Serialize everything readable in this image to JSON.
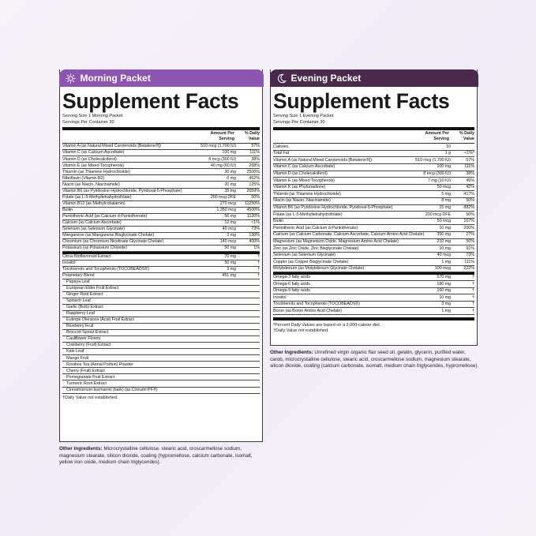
{
  "morning": {
    "header": "Morning Packet",
    "header_icon": "sun-icon",
    "title": "Supplement Facts",
    "serving_size": "Serving Size 1 Morning Packet",
    "servings": "Servings Per Container 30",
    "col_amount": "Amount Per Serving",
    "col_dv": "% Daily Value",
    "rows": [
      {
        "name": "Vitamin A (as Natural Mixed Carotenoids [Betatene®])",
        "amount": "510 mcg (1,700 IU)",
        "dv": "57%"
      },
      {
        "name": "Vitamin C (as Calcium Ascorbate)",
        "amount": "100 mg",
        "dv": "111%"
      },
      {
        "name": "Vitamin D (as Cholecalciferol)",
        "amount": "8 mcg (300 IU)",
        "dv": "38%"
      },
      {
        "name": "Vitamin E (as Mixed Tocopherols)",
        "amount": "40 mg (60 IU)",
        "dv": "268%"
      },
      {
        "name": "Thiamin (as Thiamine Hydrochloride)",
        "amount": "30 mg",
        "dv": "2500%"
      },
      {
        "name": "Riboflavin (Vitamin B2)",
        "amount": "6 mg",
        "dv": "462%"
      },
      {
        "name": "Niacin (as Niacin, Niacinamide)",
        "amount": "20 mg",
        "dv": "125%"
      },
      {
        "name": "Vitamin B6 (as Pyridoxine Hydrochloride, Pyridoxal-5-Phosphate)",
        "amount": "35 mg",
        "dv": "2059%"
      },
      {
        "name": "Folate (as L-5-Methyltetrahydrofolate)",
        "amount": "200 mcg DFE",
        "dv": "50%"
      },
      {
        "name": "Vitamin B12 (as Methylcobalamin)",
        "amount": "270 mcg",
        "dv": "11250%"
      },
      {
        "name": "Biotin",
        "amount": "1,350 mcg",
        "dv": "4500%"
      },
      {
        "name": "Pantothenic Acid (as Calcium d-Pantothenate)",
        "amount": "56 mg",
        "dv": "1120%"
      },
      {
        "name": "Calcium (as Calcium Ascorbate)",
        "amount": "12 mg",
        "dv": "<1%"
      },
      {
        "name": "Selenium (as Selenium Glycinate)",
        "amount": "40 mcg",
        "dv": "73%"
      },
      {
        "name": "Manganese (as Manganese Bisglycinate Chelate)",
        "amount": "3 mg",
        "dv": "130%"
      },
      {
        "name": "Chromium (as Chromium Nicotinate Glycinate Chelate)",
        "amount": "140 mcg",
        "dv": "400%"
      },
      {
        "name": "Potassium (as Potassium Chloride)",
        "amount": "50 mg",
        "dv": "1%"
      },
      {
        "name": "Citrus Bioflavonoid Extract",
        "amount": "70 mg",
        "dv": "†",
        "sep": true
      },
      {
        "name": "Inositol",
        "amount": "50 mg",
        "dv": "†"
      },
      {
        "name": "Tocotrienols and Tocopherols (TOCOBEADS®)",
        "amount": "3 mg",
        "dv": "†"
      },
      {
        "name": "Proprietary Blend",
        "amount": "451 mg",
        "dv": "†"
      },
      {
        "name": "Papaya Leaf",
        "sub": true
      },
      {
        "name": "European Elder Fruit Extract",
        "sub": true
      },
      {
        "name": "Ginger Root Extract",
        "sub": true
      },
      {
        "name": "Spinach Leaf",
        "sub": true
      },
      {
        "name": "Garlic (Bulb) Extract",
        "sub": true
      },
      {
        "name": "Raspberry Leaf",
        "sub": true
      },
      {
        "name": "Euterpe Oleracea (Acai) Fruit Extract",
        "sub": true
      },
      {
        "name": "Blueberry Fruit",
        "sub": true
      },
      {
        "name": "Broccoli Sprout Extract",
        "sub": true
      },
      {
        "name": "Cauliflower Florets",
        "sub": true
      },
      {
        "name": "Cranberry (Fruit) Extract",
        "sub": true
      },
      {
        "name": "Kale Leaf",
        "sub": true
      },
      {
        "name": "Mango Fruit",
        "sub": true
      },
      {
        "name": "Rooibos Tea (Aerial Portion) Powder",
        "sub": true
      },
      {
        "name": "Cherry (Fruit) Extract",
        "sub": true
      },
      {
        "name": "Pomegranate Fruit Extract",
        "sub": true
      },
      {
        "name": "Turmeric Root Extract",
        "sub": true
      },
      {
        "name": "Cinnamomum burmannii (bark) (as Cinnulin PF®)",
        "sub": true
      }
    ],
    "footnotes": [
      "†Daily Value not established."
    ],
    "other_label": "Other Ingredients:",
    "other_text": "Microcrystalline cellulose, stearic acid, croscarmellose sodium, magnesium stearate, silicon dioxide, coating (hypromellose, calcium carbonate, isomalt, yellow iron oxide, medium chain triglycerides)."
  },
  "evening": {
    "header": "Evening Packet",
    "header_icon": "moon-icon",
    "title": "Supplement Facts",
    "serving_size": "Serving Size 1 Evening Packet",
    "servings": "Servings Per Container 30",
    "col_amount": "Amount Per Serving",
    "col_dv": "% Daily Value",
    "rows": [
      {
        "name": "Calories",
        "amount": "10",
        "dv": ""
      },
      {
        "name": "Total Fat",
        "amount": "1 g",
        "dv": "<1%*"
      },
      {
        "name": "Vitamin A (as Natural Mixed Carotenoids [Betatene®])",
        "amount": "510 mcg (1,700 IU)",
        "dv": "57%"
      },
      {
        "name": "Vitamin C (as Calcium Ascorbate)",
        "amount": "100 mg",
        "dv": "111%"
      },
      {
        "name": "Vitamin D (as Cholecalciferol)",
        "amount": "8 mcg (300 IU)",
        "dv": "38%"
      },
      {
        "name": "Vitamin E (as Mixed Tocopherols)",
        "amount": "7 mg (10 IU)",
        "dv": "45%"
      },
      {
        "name": "Vitamin K (as Phytonadione)",
        "amount": "50 mcg",
        "dv": "42%"
      },
      {
        "name": "Thiamin (as Thiamine Hydrochloride)",
        "amount": "5 mg",
        "dv": "417%"
      },
      {
        "name": "Niacin (as Niacin, Niacinamide)",
        "amount": "8 mg",
        "dv": "50%"
      },
      {
        "name": "Vitamin B6 (as Pyridoxine Hydrochloride, Pyridoxal-5-Phosphate)",
        "amount": "15 mg",
        "dv": "882%"
      },
      {
        "name": "Folate (as L-5-Methyltetrahydrofolate)",
        "amount": "200 mcg DFE",
        "dv": "50%"
      },
      {
        "name": "Biotin",
        "amount": "50 mcg",
        "dv": "167%"
      },
      {
        "name": "Pantothenic Acid (as Calcium d-Pantothenate)",
        "amount": "10 mg",
        "dv": "200%"
      },
      {
        "name": "Calcium (as Calcium Carbonate, Calcium Ascorbate, Calcium Amino Acid Chelate)",
        "amount": "350 mg",
        "dv": "27%"
      },
      {
        "name": "Magnesium (as Magnesium Oxide, Magnesium Amino Acid Chelate)",
        "amount": "210 mg",
        "dv": "50%"
      },
      {
        "name": "Zinc (as Zinc Oxide, Zinc Bisglycinate Chelate)",
        "amount": "10 mg",
        "dv": "91%"
      },
      {
        "name": "Selenium (as Selenium Glycinate)",
        "amount": "40 mcg",
        "dv": "73%"
      },
      {
        "name": "Copper (as Copper Bisglycinate Chelate)",
        "amount": "1 mg",
        "dv": "111%"
      },
      {
        "name": "Molybdenum (as Molybdenum Glycinate Chelate)",
        "amount": "100 mcg",
        "dv": "222%"
      },
      {
        "name": "Omega-3 fatty acids",
        "amount": "570 mg",
        "dv": "†",
        "sep": true
      },
      {
        "name": "Omega-6 fatty acids",
        "amount": "180 mg",
        "dv": "†"
      },
      {
        "name": "Omega-9 fatty acids",
        "amount": "160 mg",
        "dv": "†"
      },
      {
        "name": "Inositol",
        "amount": "10 mg",
        "dv": "†"
      },
      {
        "name": "Tocotrienols and Tocopherols (TOCOBEADS®)",
        "amount": "3 mg",
        "dv": "†"
      },
      {
        "name": "Boron (as Boron Amino Acid Chelate)",
        "amount": "1 mg",
        "dv": "†"
      }
    ],
    "footnotes": [
      "*Percent Daily Values are based on a 2,000-calorie diet.",
      "†Daily Value not established."
    ],
    "other_label": "Other Ingredients:",
    "other_text": "Unrefined virgin organic flax seed oil, gelatin, glycerin, purified water, carob, microcrystalline cellulose, stearic acid, croscarmellose sodium, magnesium stearate, silicon dioxide, coating (calcium carbonate, isomalt, medium chain triglycerides, hypromellose)."
  },
  "colors": {
    "morning_header": "#8c55b1",
    "evening_header": "#4a2a4c",
    "background": "#f4f0f8"
  }
}
